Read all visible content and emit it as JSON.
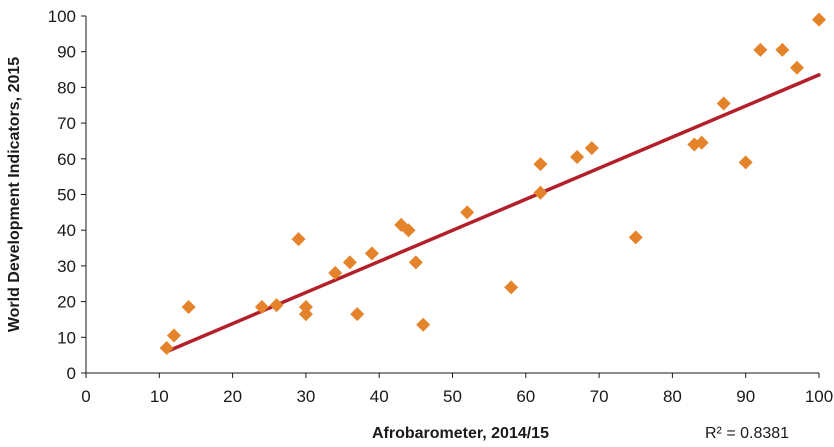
{
  "chart_data": {
    "type": "scatter",
    "xlabel": "Afrobarometer, 2014/15",
    "ylabel": "World Development Indicators, 2015",
    "xlim": [
      0,
      100
    ],
    "ylim": [
      0,
      100
    ],
    "xticks": [
      "0",
      "10",
      "20",
      "30",
      "40",
      "50",
      "60",
      "70",
      "80",
      "90",
      "100"
    ],
    "yticks": [
      "0",
      "10",
      "20",
      "30",
      "40",
      "50",
      "60",
      "70",
      "80",
      "90",
      "100"
    ],
    "grid": false,
    "series": [
      {
        "marker": "diamond",
        "color": "#e5832b",
        "points": [
          {
            "x": 11,
            "y": 7
          },
          {
            "x": 12,
            "y": 10.5
          },
          {
            "x": 14,
            "y": 18.5
          },
          {
            "x": 24,
            "y": 18.5
          },
          {
            "x": 26,
            "y": 19
          },
          {
            "x": 29,
            "y": 37.5
          },
          {
            "x": 30,
            "y": 18.5
          },
          {
            "x": 30,
            "y": 16.5
          },
          {
            "x": 34,
            "y": 28
          },
          {
            "x": 36,
            "y": 31
          },
          {
            "x": 37,
            "y": 16.5
          },
          {
            "x": 39,
            "y": 33.5
          },
          {
            "x": 43,
            "y": 41.5
          },
          {
            "x": 44,
            "y": 40
          },
          {
            "x": 45,
            "y": 31
          },
          {
            "x": 46,
            "y": 13.5
          },
          {
            "x": 52,
            "y": 45
          },
          {
            "x": 58,
            "y": 24
          },
          {
            "x": 62,
            "y": 58.5
          },
          {
            "x": 62,
            "y": 50.5
          },
          {
            "x": 67,
            "y": 60.5
          },
          {
            "x": 69,
            "y": 63
          },
          {
            "x": 75,
            "y": 38
          },
          {
            "x": 83,
            "y": 64
          },
          {
            "x": 84,
            "y": 64.5
          },
          {
            "x": 87,
            "y": 75.5
          },
          {
            "x": 90,
            "y": 59
          },
          {
            "x": 92,
            "y": 90.5
          },
          {
            "x": 95,
            "y": 90.5
          },
          {
            "x": 97,
            "y": 85.5
          },
          {
            "x": 100,
            "y": 99
          }
        ]
      }
    ],
    "trendline": {
      "type": "linear",
      "color": "#b3202a",
      "start": {
        "x": 11,
        "y": 6
      },
      "end": {
        "x": 100,
        "y": 83.5
      }
    },
    "annotation": "R² = 0.8381"
  }
}
